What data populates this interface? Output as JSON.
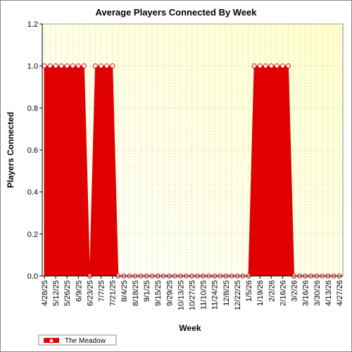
{
  "chart_data": {
    "type": "area",
    "title": "Average Players Connected By Week",
    "x_label": "Week",
    "y_label": "Players Connected",
    "categories": [
      "4/28/25",
      null,
      "5/12/25",
      null,
      "5/26/25",
      null,
      "6/9/25",
      null,
      "6/23/25",
      null,
      "7/7/25",
      null,
      "7/21/25",
      null,
      "8/4/25",
      null,
      "8/18/25",
      null,
      "9/1/25",
      null,
      "9/15/25",
      null,
      "9/29/25",
      null,
      "10/13/25",
      null,
      "10/27/25",
      null,
      "11/10/25",
      null,
      "11/24/25",
      null,
      "12/8/25",
      null,
      "12/22/25",
      null,
      "1/5/26",
      null,
      "1/19/26",
      null,
      "2/2/26",
      null,
      "2/16/26",
      null,
      "3/2/26",
      null,
      "3/16/26",
      null,
      "3/30/26",
      null,
      "4/13/26",
      null,
      "4/27/26"
    ],
    "series": [
      {
        "name": "The Meadow",
        "color": "#e00000",
        "values": [
          1,
          1,
          1,
          1,
          1,
          1,
          1,
          1,
          0,
          1,
          1,
          1,
          1,
          0,
          0,
          0,
          0,
          0,
          0,
          0,
          0,
          0,
          0,
          0,
          0,
          0,
          0,
          0,
          0,
          0,
          0,
          0,
          0,
          0,
          0,
          0,
          0,
          1,
          1,
          1,
          1,
          1,
          1,
          1,
          0,
          0,
          0,
          0,
          0,
          0,
          0,
          0,
          0
        ]
      }
    ],
    "ylim": [
      0,
      1.2
    ],
    "yticks": [
      {
        "value": 0,
        "label": "0.0"
      },
      0.2,
      0.4,
      0.6,
      0.8,
      {
        "value": 1,
        "label": "1.0"
      },
      1.2
    ],
    "grid": true,
    "legend": "bottom-left"
  }
}
